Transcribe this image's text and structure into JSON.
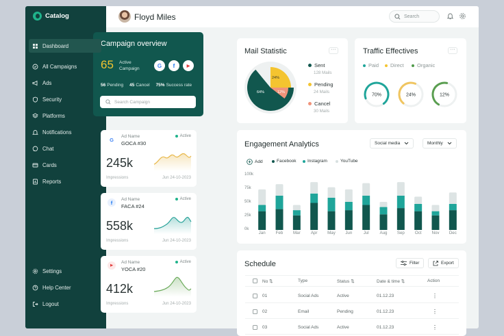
{
  "app": {
    "name": "Catalog"
  },
  "sidebar": {
    "items": [
      {
        "label": "Dashboard",
        "icon": "dashboard-icon"
      },
      {
        "label": "All Campaigns",
        "icon": "campaigns-icon"
      },
      {
        "label": "Ads",
        "icon": "megaphone-icon"
      },
      {
        "label": "Security",
        "icon": "shield-icon"
      },
      {
        "label": "Platforms",
        "icon": "layers-icon"
      },
      {
        "label": "Notifications",
        "icon": "bell-icon"
      },
      {
        "label": "Chat",
        "icon": "chat-icon"
      },
      {
        "label": "Cards",
        "icon": "card-icon"
      },
      {
        "label": "Reports",
        "icon": "report-icon"
      }
    ],
    "bottom": [
      {
        "label": "Settings",
        "icon": "gear-icon"
      },
      {
        "label": "Help Center",
        "icon": "help-icon"
      },
      {
        "label": "Logout",
        "icon": "logout-icon"
      }
    ]
  },
  "header": {
    "user_name": "Floyd Miles",
    "search_placeholder": "Search"
  },
  "campaign": {
    "title": "Campaign overview",
    "active_count": "65",
    "active_label": "Active Campaign",
    "pending_num": "56",
    "pending_label": "Pending",
    "cancel_num": "45",
    "cancel_label": "Cancel",
    "success_num": "75%",
    "success_label": "Success rate",
    "search_placeholder": "Search Campaign",
    "socials": [
      "G",
      "f",
      "▶"
    ]
  },
  "ads": [
    {
      "label": "Ad Name",
      "name": "GOCA #30",
      "status": "Active",
      "value": "245k",
      "metric": "Impressions",
      "date": "Jun 24-10-2023",
      "logo": "G",
      "color": "#e8b84a"
    },
    {
      "label": "Ad Name",
      "name": "FACA #24",
      "status": "Active",
      "value": "558k",
      "metric": "Impressions",
      "date": "Jun 24-10-2023",
      "logo": "f",
      "color": "#2aa39a"
    },
    {
      "label": "Ad Name",
      "name": "YOCA #20",
      "status": "Active",
      "value": "412k",
      "metric": "Impressions",
      "date": "Jun 24-10-2023",
      "logo": "▶",
      "color": "#6aaa5a"
    }
  ],
  "mail": {
    "title": "Mail Statistic",
    "menu": "···",
    "segments": [
      {
        "name": "Sent",
        "sub": "128 Mails",
        "color": "#11574e",
        "pct": "64%",
        "value": 64
      },
      {
        "name": "Pending",
        "sub": "24 Mails",
        "color": "#f4c430",
        "pct": "24%",
        "value": 24
      },
      {
        "name": "Cancel",
        "sub": "30 Mails",
        "color": "#f0937a",
        "pct": "12%",
        "value": 12
      }
    ]
  },
  "traffic": {
    "title": "Traffic Effectives",
    "menu": "···",
    "legend": [
      {
        "name": "Paid",
        "color": "#1fa59a"
      },
      {
        "name": "Direct",
        "color": "#f4c430"
      },
      {
        "name": "Organic",
        "color": "#4f9a4a"
      }
    ],
    "rings": [
      {
        "label": "70%",
        "value": 70,
        "color": "#1fa59a"
      },
      {
        "label": "24%",
        "value": 24,
        "color": "#f0c560"
      },
      {
        "label": "12%",
        "value": 12,
        "color": "#5a9e50"
      }
    ]
  },
  "engagement": {
    "title": "Engagement Analytics",
    "dropdown_source": "Social media",
    "dropdown_period": "Monthly",
    "add_label": "Add",
    "legend": [
      {
        "name": "Facebook",
        "color": "#11574e"
      },
      {
        "name": "Instagram",
        "color": "#1fa59a"
      },
      {
        "name": "YouTube",
        "color": "#d8e0e0"
      }
    ]
  },
  "chart_data": {
    "type": "bar",
    "categories": [
      "Jan",
      "Feb",
      "Mar",
      "Apr",
      "May",
      "Jun",
      "Jul",
      "Aug",
      "Sep",
      "Oct",
      "Nov",
      "Dec"
    ],
    "yticks": [
      "100k",
      "75k",
      "50k",
      "25k",
      "0k"
    ],
    "ylim": [
      0,
      100
    ],
    "series": [
      {
        "name": "Facebook",
        "color": "#11574e",
        "values": [
          36,
          40,
          28,
          52,
          36,
          38,
          48,
          30,
          42,
          36,
          28,
          38
        ]
      },
      {
        "name": "Instagram",
        "color": "#1fa59a",
        "values": [
          12,
          26,
          10,
          18,
          26,
          16,
          18,
          14,
          24,
          14,
          8,
          12
        ]
      },
      {
        "name": "YouTube",
        "color": "#dde4e4",
        "values": [
          30,
          22,
          10,
          22,
          20,
          24,
          24,
          10,
          26,
          14,
          12,
          22
        ]
      }
    ]
  },
  "schedule": {
    "title": "Schedule",
    "filter_label": "Filter",
    "export_label": "Export",
    "headers": [
      "No",
      "Type",
      "Status",
      "Date & time",
      "Action"
    ],
    "rows": [
      {
        "no": "01",
        "type": "Social Ads",
        "status": "Active",
        "date": "01.12.23",
        "action": "⋮"
      },
      {
        "no": "02",
        "type": "Email",
        "status": "Pending",
        "date": "01.12.23",
        "action": "⋮"
      },
      {
        "no": "03",
        "type": "Social Ads",
        "status": "Active",
        "date": "01.12.23",
        "action": "⋮"
      }
    ]
  }
}
